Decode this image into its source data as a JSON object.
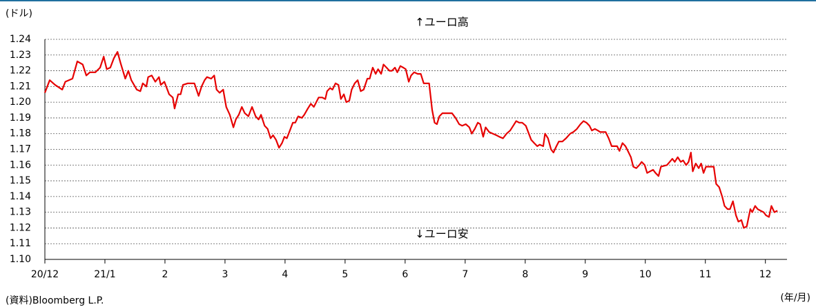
{
  "chart_data": {
    "type": "line",
    "y_label": "(ドル)",
    "x_label": "(年/月)",
    "source": "(資料)Bloomberg L.P.",
    "annotations": [
      "↑ユーロ高",
      "↓ユーロ安"
    ],
    "color": "#e60000",
    "grid": true,
    "xlim": [
      0,
      12.36
    ],
    "ylim": [
      1.1,
      1.24
    ],
    "xticks": [
      {
        "value": 0,
        "label": "20/12"
      },
      {
        "value": 1,
        "label": "21/1"
      },
      2,
      3,
      4,
      5,
      6,
      7,
      8,
      9,
      10,
      11,
      12
    ],
    "yticks": [
      {
        "value": 1.1,
        "label": "1.10"
      },
      1.11,
      1.12,
      1.13,
      1.14,
      1.15,
      1.16,
      1.17,
      1.18,
      1.19,
      {
        "value": 1.2,
        "label": "1.20"
      },
      1.21,
      1.22,
      1.23,
      1.24
    ],
    "x": [
      0.0,
      0.08,
      0.17,
      0.29,
      0.34,
      0.46,
      0.54,
      0.63,
      0.69,
      0.75,
      0.84,
      0.92,
      0.98,
      1.03,
      1.09,
      1.15,
      1.21,
      1.26,
      1.34,
      1.39,
      1.44,
      1.53,
      1.59,
      1.63,
      1.69,
      1.72,
      1.78,
      1.84,
      1.9,
      1.93,
      1.99,
      2.07,
      2.13,
      2.16,
      2.22,
      2.26,
      2.3,
      2.38,
      2.45,
      2.49,
      2.56,
      2.61,
      2.66,
      2.7,
      2.77,
      2.82,
      2.86,
      2.91,
      2.97,
      3.02,
      3.08,
      3.14,
      3.18,
      3.23,
      3.28,
      3.33,
      3.39,
      3.45,
      3.51,
      3.56,
      3.6,
      3.66,
      3.71,
      3.76,
      3.8,
      3.85,
      3.9,
      3.95,
      3.99,
      4.03,
      4.08,
      4.13,
      4.17,
      4.22,
      4.28,
      4.32,
      4.38,
      4.43,
      4.48,
      4.52,
      4.56,
      4.62,
      4.67,
      4.7,
      4.75,
      4.79,
      4.84,
      4.89,
      4.93,
      4.98,
      5.02,
      5.07,
      5.11,
      5.16,
      5.21,
      5.26,
      5.31,
      5.37,
      5.41,
      5.46,
      5.51,
      5.55,
      5.6,
      5.64,
      5.69,
      5.74,
      5.78,
      5.83,
      5.87,
      5.92,
      5.97,
      6.01,
      6.06,
      6.1,
      6.15,
      6.21,
      6.26,
      6.31,
      6.36,
      6.4,
      6.45,
      6.49,
      6.53,
      6.57,
      6.62,
      6.67,
      6.72,
      6.78,
      6.84,
      6.9,
      6.95,
      7.01,
      7.07,
      7.11,
      7.16,
      7.21,
      7.25,
      7.3,
      7.34,
      7.4,
      7.46,
      7.52,
      7.57,
      7.63,
      7.69,
      7.75,
      7.8,
      7.85,
      7.9,
      7.95,
      8.01,
      8.06,
      8.1,
      8.15,
      8.2,
      8.24,
      8.3,
      8.33,
      8.38,
      8.43,
      8.47,
      8.52,
      8.56,
      8.62,
      8.68,
      8.75,
      8.8,
      8.86,
      8.92,
      8.97,
      9.02,
      9.07,
      9.11,
      9.16,
      9.21,
      9.25,
      9.34,
      9.39,
      9.44,
      9.53,
      9.57,
      9.62,
      9.67,
      9.71,
      9.76,
      9.8,
      9.85,
      9.9,
      9.94,
      9.99,
      10.03,
      10.08,
      10.13,
      10.17,
      10.22,
      10.26,
      10.36,
      10.45,
      10.49,
      10.54,
      10.59,
      10.63,
      10.68,
      10.72,
      10.76,
      10.79,
      10.84,
      10.89,
      10.93,
      10.97,
      11.01,
      11.09,
      11.14,
      11.18,
      11.23,
      11.28,
      11.32,
      11.37,
      11.41,
      11.46,
      11.51,
      11.55,
      11.6,
      11.64,
      11.69,
      11.75,
      11.78,
      11.83,
      11.87,
      11.92,
      11.97,
      12.01,
      12.06,
      12.1,
      12.15,
      12.2
    ],
    "values": [
      1.206,
      1.214,
      1.211,
      1.208,
      1.213,
      1.215,
      1.226,
      1.224,
      1.217,
      1.219,
      1.219,
      1.222,
      1.229,
      1.221,
      1.222,
      1.228,
      1.232,
      1.225,
      1.215,
      1.22,
      1.214,
      1.208,
      1.207,
      1.212,
      1.21,
      1.216,
      1.217,
      1.213,
      1.216,
      1.211,
      1.213,
      1.205,
      1.203,
      1.196,
      1.205,
      1.205,
      1.211,
      1.212,
      1.212,
      1.212,
      1.204,
      1.21,
      1.214,
      1.216,
      1.215,
      1.217,
      1.208,
      1.206,
      1.208,
      1.197,
      1.192,
      1.184,
      1.189,
      1.192,
      1.197,
      1.193,
      1.191,
      1.197,
      1.191,
      1.189,
      1.192,
      1.185,
      1.183,
      1.177,
      1.179,
      1.176,
      1.171,
      1.174,
      1.178,
      1.177,
      1.182,
      1.187,
      1.187,
      1.191,
      1.19,
      1.192,
      1.196,
      1.199,
      1.197,
      1.2,
      1.203,
      1.203,
      1.202,
      1.207,
      1.209,
      1.208,
      1.212,
      1.211,
      1.202,
      1.205,
      1.2,
      1.201,
      1.208,
      1.212,
      1.214,
      1.207,
      1.208,
      1.215,
      1.215,
      1.222,
      1.218,
      1.221,
      1.218,
      1.224,
      1.222,
      1.22,
      1.22,
      1.222,
      1.219,
      1.223,
      1.222,
      1.221,
      1.213,
      1.217,
      1.219,
      1.218,
      1.218,
      1.212,
      1.212,
      1.212,
      1.195,
      1.187,
      1.186,
      1.191,
      1.193,
      1.193,
      1.193,
      1.193,
      1.19,
      1.186,
      1.185,
      1.186,
      1.184,
      1.18,
      1.183,
      1.187,
      1.186,
      1.178,
      1.184,
      1.181,
      1.18,
      1.179,
      1.178,
      1.177,
      1.18,
      1.182,
      1.185,
      1.188,
      1.187,
      1.187,
      1.185,
      1.18,
      1.176,
      1.174,
      1.172,
      1.173,
      1.172,
      1.18,
      1.177,
      1.17,
      1.168,
      1.172,
      1.175,
      1.175,
      1.177,
      1.18,
      1.181,
      1.183,
      1.186,
      1.188,
      1.187,
      1.185,
      1.182,
      1.183,
      1.182,
      1.181,
      1.181,
      1.177,
      1.172,
      1.172,
      1.169,
      1.174,
      1.172,
      1.169,
      1.165,
      1.159,
      1.158,
      1.16,
      1.162,
      1.16,
      1.155,
      1.156,
      1.157,
      1.155,
      1.153,
      1.159,
      1.16,
      1.164,
      1.162,
      1.165,
      1.162,
      1.163,
      1.16,
      1.162,
      1.168,
      1.156,
      1.161,
      1.158,
      1.161,
      1.155,
      1.159,
      1.159,
      1.159,
      1.148,
      1.146,
      1.14,
      1.134,
      1.132,
      1.132,
      1.137,
      1.128,
      1.124,
      1.125,
      1.12,
      1.121,
      1.132,
      1.13,
      1.134,
      1.132,
      1.131,
      1.13,
      1.128,
      1.127,
      1.134,
      1.13,
      1.131
    ]
  }
}
